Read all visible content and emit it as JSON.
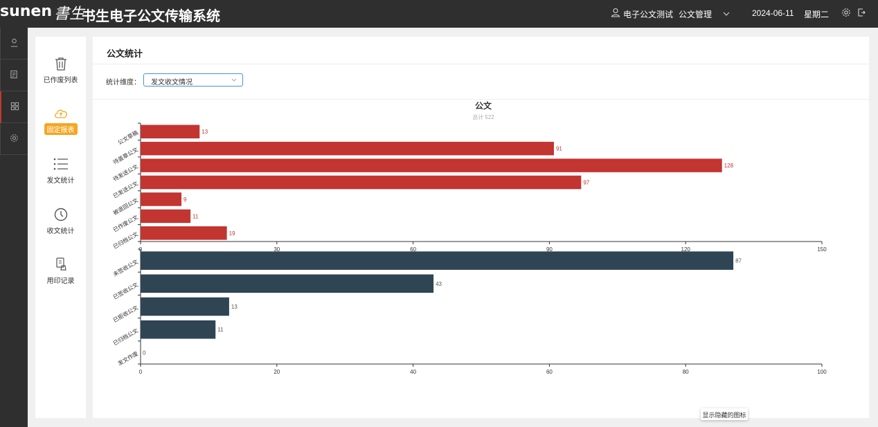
{
  "app": {
    "logo_text": "sunen",
    "logo_signature": "書生",
    "title": "书生电子公文传输系统"
  },
  "header": {
    "user": "电子公文测试",
    "menu": "公文管理",
    "date": "2024-06-11",
    "weekday": "星期二"
  },
  "subnav": {
    "items": [
      {
        "label": "已作废列表",
        "icon": "trash-icon"
      },
      {
        "label": "固定报表",
        "icon": "cloud-upload-icon",
        "active": true
      },
      {
        "label": "发文统计",
        "icon": "list-icon"
      },
      {
        "label": "收文统计",
        "icon": "clock-icon"
      },
      {
        "label": "用印记录",
        "icon": "stamp-icon"
      }
    ]
  },
  "main": {
    "title": "公文统计",
    "filter_label": "统计维度：",
    "filter_value": "发文收文情况"
  },
  "tooltip": "显示隐藏的图标",
  "chart_data": [
    {
      "type": "bar",
      "orientation": "horizontal",
      "title": "公文",
      "subtitle": "总计 522",
      "categories": [
        "公文草稿",
        "待盖章公文",
        "待发送公文",
        "已发送公文",
        "被退回公文",
        "已作废公文",
        "已归档公文"
      ],
      "values": [
        13,
        91,
        128,
        97,
        9,
        11,
        19
      ],
      "xlim": [
        0,
        150
      ],
      "xticks": [
        0,
        30,
        60,
        90,
        120,
        150
      ],
      "color": "#c23531"
    },
    {
      "type": "bar",
      "orientation": "horizontal",
      "categories": [
        "未签收公文",
        "已签收公文",
        "已拒收公文",
        "已归档公文",
        "发文作废"
      ],
      "values": [
        87,
        43,
        13,
        11,
        0
      ],
      "xlim": [
        0,
        100
      ],
      "xticks": [
        0,
        20,
        40,
        60,
        80,
        100
      ],
      "color": "#2f4554"
    }
  ]
}
